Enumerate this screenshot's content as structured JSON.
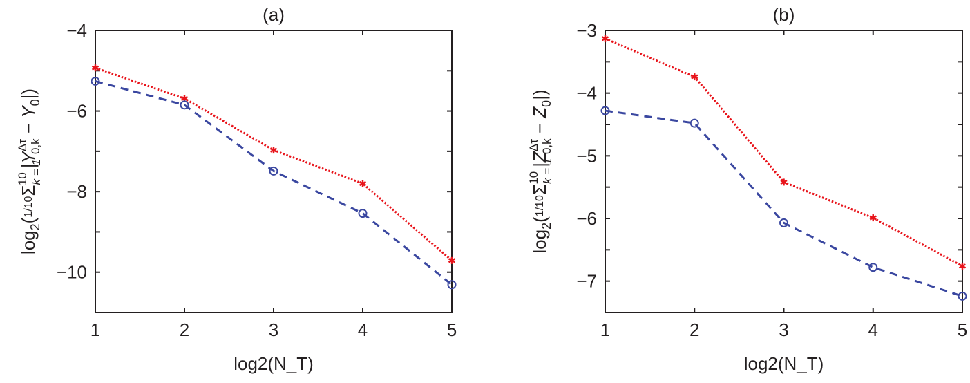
{
  "chart_data": [
    {
      "type": "line",
      "title": "(a)",
      "xlabel": "log2(N_T)",
      "ylabel": "log2(1/10 Σ_{k=1}^{10} |Y^{Δτ}_{0,k} − Y0|)",
      "ylabel_parts": {
        "pre": "log",
        "sub2": "2",
        "open": "(",
        "frac": "1/10",
        "sum": "Σ",
        "sumsub": "k = 1",
        "sumsup": "10",
        "bar": "|",
        "var": "Y",
        "varsup": "Δτ",
        "varsub": "0,k",
        "minus": " − ",
        "var2": "Y",
        "var2sub": "0",
        "close": "|)"
      },
      "xlabel_parts": {
        "pre": "log",
        "sub2": "2",
        "open": "(",
        "var": "N",
        "varsub": "T",
        "close": ")"
      },
      "x": [
        1,
        2,
        3,
        4,
        5
      ],
      "xlim": [
        1,
        5
      ],
      "ylim": [
        -11,
        -4
      ],
      "xticks": [
        "1",
        "2",
        "3",
        "4",
        "5"
      ],
      "yticks": [
        {
          "v": -4,
          "label": "−4"
        },
        {
          "v": -6,
          "label": "−6"
        },
        {
          "v": -8,
          "label": "−8"
        },
        {
          "v": -10,
          "label": "−10"
        }
      ],
      "minor_yticks": [
        -5,
        -7,
        -9,
        -11
      ],
      "grid": false,
      "series": [
        {
          "name": "red-dotted-asterisk",
          "color": "#e8141b",
          "style": "dotted",
          "marker": "asterisk",
          "values": [
            -4.93,
            -5.69,
            -6.97,
            -7.8,
            -9.71
          ]
        },
        {
          "name": "blue-dashed-circle",
          "color": "#3a47a0",
          "style": "dashed",
          "marker": "circle",
          "values": [
            -5.26,
            -5.85,
            -7.49,
            -8.54,
            -10.31
          ]
        }
      ]
    },
    {
      "type": "line",
      "title": "(b)",
      "xlabel": "log2(N_T)",
      "ylabel": "log2(1/10 Σ_{k=1}^{10} |Z^{Δτ}_{0,k} − Z0|)",
      "ylabel_parts": {
        "pre": "log",
        "sub2": "2",
        "open": "(",
        "frac": "1/10",
        "sum": "Σ",
        "sumsub": "k = 1",
        "sumsup": "10",
        "bar": "|",
        "var": "Z",
        "varsup": "Δτ",
        "varsub": "0,k",
        "minus": " − ",
        "var2": "Z",
        "var2sub": "0",
        "close": "|)"
      },
      "xlabel_parts": {
        "pre": "log",
        "sub2": "2",
        "open": "(",
        "var": "N",
        "varsub": "T",
        "close": ")"
      },
      "x": [
        1,
        2,
        3,
        4,
        5
      ],
      "xlim": [
        1,
        5
      ],
      "ylim": [
        -7.5,
        -3
      ],
      "xticks": [
        "1",
        "2",
        "3",
        "4",
        "5"
      ],
      "yticks": [
        {
          "v": -3,
          "label": "−3"
        },
        {
          "v": -4,
          "label": "−4"
        },
        {
          "v": -5,
          "label": "−5"
        },
        {
          "v": -6,
          "label": "−6"
        },
        {
          "v": -7,
          "label": "−7"
        }
      ],
      "minor_yticks": [
        -3.5,
        -4.5,
        -5.5,
        -6.5,
        -7.5
      ],
      "grid": false,
      "series": [
        {
          "name": "red-dotted-asterisk",
          "color": "#e8141b",
          "style": "dotted",
          "marker": "asterisk",
          "values": [
            -3.13,
            -3.74,
            -5.42,
            -5.99,
            -6.76
          ]
        },
        {
          "name": "blue-dashed-circle",
          "color": "#3a47a0",
          "style": "dashed",
          "marker": "circle",
          "values": [
            -4.28,
            -4.48,
            -6.07,
            -6.78,
            -7.24
          ]
        }
      ]
    }
  ]
}
